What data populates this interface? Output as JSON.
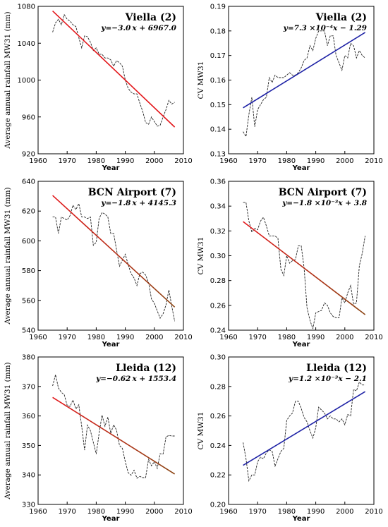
{
  "figure_title": "",
  "colors": {
    "red": "#e3171b",
    "blue": "#1f23a6",
    "brown": "#8b4513",
    "series": "#222222"
  },
  "chart_data": [
    {
      "id": "viella-rain",
      "type": "line",
      "title": "Viella (2)",
      "equation": "y=−3.0 x + 6967.0",
      "xlabel": "Year",
      "ylabel": "Average annual rainfall MW31 (mm)",
      "xlim": [
        1960,
        2010
      ],
      "ylim": [
        920,
        1080
      ],
      "xticks": [
        "1960",
        "1970",
        "1980",
        "1990",
        "2000",
        "2010"
      ],
      "yticks": [
        "920",
        "960",
        "1000",
        "1040",
        "1080"
      ],
      "trend": {
        "x": [
          1965,
          2007
        ],
        "y": [
          1075,
          949
        ],
        "color": "#e3171b"
      },
      "series": [
        {
          "x": [
            1965,
            1966,
            1967,
            1968,
            1969,
            1970,
            1971,
            1972,
            1973,
            1974,
            1975,
            1976,
            1977,
            1978,
            1979,
            1980,
            1981,
            1982,
            1983,
            1984,
            1985,
            1986,
            1987,
            1988,
            1989,
            1990,
            1991,
            1992,
            1993,
            1994,
            1995,
            1996,
            1997,
            1998,
            1999,
            2000,
            2001,
            2002,
            2003,
            2004,
            2005,
            2006,
            2007
          ],
          "y": [
            1052,
            1062,
            1066,
            1060,
            1071,
            1066,
            1064,
            1060,
            1058,
            1046,
            1035,
            1048,
            1047,
            1041,
            1032,
            1035,
            1028,
            1028,
            1024,
            1024,
            1022,
            1015,
            1021,
            1019,
            1015,
            1000,
            991,
            987,
            985,
            985,
            975,
            966,
            954,
            952,
            960,
            955,
            950,
            951,
            960,
            968,
            978,
            974,
            976
          ]
        }
      ]
    },
    {
      "id": "viella-cv",
      "type": "line",
      "title": "Viella (2)",
      "equation": "y=7.3 ×10⁻⁴x − 1.29",
      "xlabel": "Year",
      "ylabel": "CV MW31",
      "xlim": [
        1960,
        2010
      ],
      "ylim": [
        0.13,
        0.19
      ],
      "xticks": [
        "1960",
        "1970",
        "1980",
        "1990",
        "2000",
        "2010"
      ],
      "yticks": [
        "0.13",
        "0.14",
        "0.15",
        "0.16",
        "0.17",
        "0.18",
        "0.19"
      ],
      "trend": {
        "x": [
          1965,
          2007
        ],
        "y": [
          0.1487,
          0.1794
        ],
        "color": "#1f23a6"
      },
      "series": [
        {
          "x": [
            1965,
            1966,
            1967,
            1968,
            1969,
            1970,
            1971,
            1972,
            1973,
            1974,
            1975,
            1976,
            1977,
            1978,
            1979,
            1980,
            1981,
            1982,
            1983,
            1984,
            1985,
            1986,
            1987,
            1988,
            1989,
            1990,
            1991,
            1992,
            1993,
            1994,
            1995,
            1996,
            1997,
            1998,
            1999,
            2000,
            2001,
            2002,
            2003,
            2004,
            2005,
            2006,
            2007
          ],
          "y": [
            0.139,
            0.137,
            0.146,
            0.153,
            0.141,
            0.148,
            0.15,
            0.152,
            0.153,
            0.161,
            0.159,
            0.162,
            0.161,
            0.161,
            0.161,
            0.162,
            0.163,
            0.162,
            0.162,
            0.163,
            0.165,
            0.168,
            0.169,
            0.174,
            0.172,
            0.177,
            0.18,
            0.18,
            0.18,
            0.174,
            0.178,
            0.178,
            0.17,
            0.167,
            0.164,
            0.17,
            0.169,
            0.175,
            0.174,
            0.169,
            0.172,
            0.17,
            0.169
          ]
        }
      ]
    },
    {
      "id": "bcn-rain",
      "type": "line",
      "title": "BCN Airport (7)",
      "equation": "y=−1.8 x + 4145.3",
      "xlabel": "Year",
      "ylabel": "Average annual rainfall MW31 (mm)",
      "xlim": [
        1960,
        2010
      ],
      "ylim": [
        540,
        640
      ],
      "xticks": [
        "1960",
        "1970",
        "1980",
        "1990",
        "2000",
        "2010"
      ],
      "yticks": [
        "540",
        "560",
        "580",
        "600",
        "620",
        "640"
      ],
      "trend": {
        "x": [
          1965,
          2007
        ],
        "y": [
          630.5,
          555.5
        ],
        "color_start": "#e3171b",
        "color_end": "#8b4513"
      },
      "series": [
        {
          "x": [
            1965,
            1966,
            1967,
            1968,
            1969,
            1970,
            1971,
            1972,
            1973,
            1974,
            1975,
            1976,
            1977,
            1978,
            1979,
            1980,
            1981,
            1982,
            1983,
            1984,
            1985,
            1986,
            1987,
            1988,
            1989,
            1990,
            1991,
            1992,
            1993,
            1994,
            1995,
            1996,
            1997,
            1998,
            1999,
            2000,
            2001,
            2002,
            2003,
            2004,
            2005,
            2006,
            2007
          ],
          "y": [
            616,
            616,
            605,
            616,
            615,
            614,
            617,
            624,
            621,
            625,
            616,
            616,
            615,
            616,
            597,
            599,
            615,
            619,
            618,
            616,
            605,
            605,
            594,
            583,
            587,
            591,
            584,
            578,
            575,
            570,
            578,
            579,
            577,
            572,
            561,
            558,
            553,
            548,
            551,
            557,
            567,
            556,
            546
          ]
        }
      ]
    },
    {
      "id": "bcn-cv",
      "type": "line",
      "title": "BCN Airport (7)",
      "equation": "y=−1.8 ×10⁻³x + 3.8",
      "xlabel": "Year",
      "ylabel": "CV MW31",
      "xlim": [
        1960,
        2010
      ],
      "ylim": [
        0.24,
        0.36
      ],
      "xticks": [
        "1960",
        "1970",
        "1980",
        "1990",
        "2000",
        "2010"
      ],
      "yticks": [
        "0.24",
        "0.26",
        "0.28",
        "0.30",
        "0.32",
        "0.34",
        "0.36"
      ],
      "trend": {
        "x": [
          1965,
          2007
        ],
        "y": [
          0.3275,
          0.2525
        ],
        "color_start": "#e3171b",
        "color_end": "#8b4513"
      },
      "series": [
        {
          "x": [
            1965,
            1966,
            1967,
            1968,
            1969,
            1970,
            1971,
            1972,
            1973,
            1974,
            1975,
            1976,
            1977,
            1978,
            1979,
            1980,
            1981,
            1982,
            1983,
            1984,
            1985,
            1986,
            1987,
            1988,
            1989,
            1990,
            1991,
            1992,
            1993,
            1994,
            1995,
            1996,
            1997,
            1998,
            1999,
            2000,
            2001,
            2002,
            2003,
            2004,
            2005,
            2006,
            2007
          ],
          "y": [
            0.343,
            0.343,
            0.328,
            0.319,
            0.322,
            0.321,
            0.328,
            0.331,
            0.324,
            0.316,
            0.316,
            0.316,
            0.314,
            0.289,
            0.284,
            0.3,
            0.294,
            0.296,
            0.297,
            0.308,
            0.308,
            0.29,
            0.258,
            0.248,
            0.241,
            0.254,
            0.255,
            0.256,
            0.262,
            0.26,
            0.254,
            0.251,
            0.25,
            0.25,
            0.266,
            0.262,
            0.27,
            0.276,
            0.261,
            0.262,
            0.292,
            0.302,
            0.316
          ]
        }
      ]
    },
    {
      "id": "lleida-rain",
      "type": "line",
      "title": "Lleida (12)",
      "equation": "y=−0.62 x + 1553.4",
      "xlabel": "Year",
      "ylabel": "Average annual rainfall MW31 (mm)",
      "xlim": [
        1960,
        2010
      ],
      "ylim": [
        330,
        380
      ],
      "xticks": [
        "1960",
        "1970",
        "1980",
        "1990",
        "2000",
        "2010"
      ],
      "yticks": [
        "330",
        "340",
        "350",
        "360",
        "370",
        "380"
      ],
      "trend": {
        "x": [
          1965,
          2007
        ],
        "y": [
          366.3,
          340.3
        ],
        "color_start": "#e3171b",
        "color_end": "#8b4513"
      },
      "series": [
        {
          "x": [
            1965,
            1966,
            1967,
            1968,
            1969,
            1970,
            1971,
            1972,
            1973,
            1974,
            1975,
            1976,
            1977,
            1978,
            1979,
            1980,
            1981,
            1982,
            1983,
            1984,
            1985,
            1986,
            1987,
            1988,
            1989,
            1990,
            1991,
            1992,
            1993,
            1994,
            1995,
            1996,
            1997,
            1998,
            1999,
            2000,
            2001,
            2002,
            2003,
            2004,
            2005,
            2006,
            2007
          ],
          "y": [
            370.2,
            374.0,
            369.5,
            368.0,
            367.2,
            363.6,
            363.2,
            365.4,
            362.4,
            363.8,
            356.5,
            348.4,
            356.9,
            355.0,
            351.0,
            347.1,
            354.1,
            360.3,
            356.5,
            359.6,
            354.1,
            357.0,
            355.2,
            350.0,
            349.0,
            344.5,
            340.8,
            339.9,
            341.6,
            338.9,
            339.5,
            339.1,
            339.1,
            345.3,
            343.1,
            344.5,
            342.2,
            347.2,
            347.1,
            352.9,
            353.4,
            353.2,
            353.2
          ]
        }
      ]
    },
    {
      "id": "lleida-cv",
      "type": "line",
      "title": "Lleida (12)",
      "equation": "y=1.2 ×10⁻³x − 2.1",
      "xlabel": "Year",
      "ylabel": "CV MW31",
      "xlim": [
        1960,
        2010
      ],
      "ylim": [
        0.2,
        0.3
      ],
      "xticks": [
        "1960",
        "1970",
        "1980",
        "1990",
        "2000",
        "2010"
      ],
      "yticks": [
        "0.20",
        "0.22",
        "0.24",
        "0.26",
        "0.28",
        "0.30"
      ],
      "trend": {
        "x": [
          1965,
          2007
        ],
        "y": [
          0.2265,
          0.2765
        ],
        "color": "#1f23a6"
      },
      "series": [
        {
          "x": [
            1965,
            1966,
            1967,
            1968,
            1969,
            1970,
            1971,
            1972,
            1973,
            1974,
            1975,
            1976,
            1977,
            1978,
            1979,
            1980,
            1981,
            1982,
            1983,
            1984,
            1985,
            1986,
            1987,
            1988,
            1989,
            1990,
            1991,
            1992,
            1993,
            1994,
            1995,
            1996,
            1997,
            1998,
            1999,
            2000,
            2001,
            2002,
            2003,
            2004,
            2005,
            2006,
            2007
          ],
          "y": [
            0.242,
            0.231,
            0.216,
            0.22,
            0.22,
            0.229,
            0.232,
            0.231,
            0.235,
            0.237,
            0.236,
            0.226,
            0.231,
            0.236,
            0.238,
            0.257,
            0.26,
            0.262,
            0.27,
            0.27,
            0.265,
            0.259,
            0.256,
            0.25,
            0.245,
            0.252,
            0.266,
            0.264,
            0.262,
            0.258,
            0.26,
            0.258,
            0.258,
            0.256,
            0.258,
            0.254,
            0.261,
            0.26,
            0.278,
            0.277,
            0.283,
            0.281,
            0.281
          ]
        }
      ]
    }
  ]
}
